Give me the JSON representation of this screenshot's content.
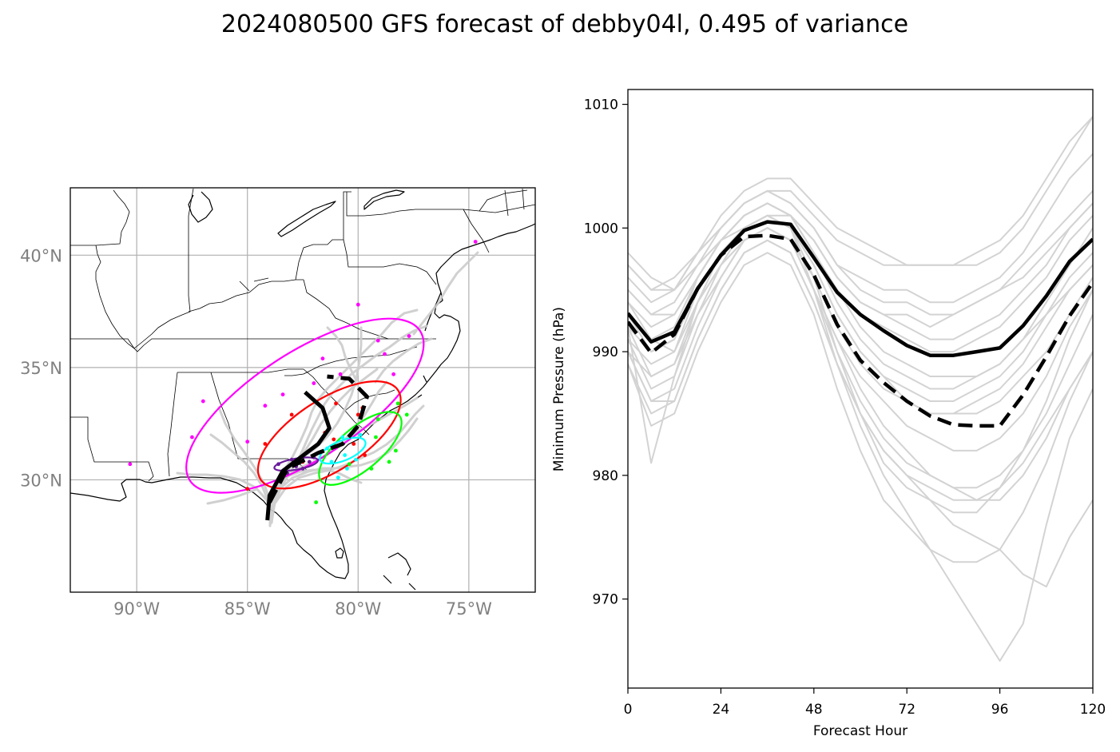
{
  "title": "2024080500 GFS forecast of debby04l, 0.495 of variance",
  "chart_data": [
    {
      "type": "scatter",
      "panel": "track map",
      "lon_range": [
        -93,
        -72
      ],
      "lat_range": [
        25,
        43
      ],
      "lon_ticks": [
        -90,
        -85,
        -80,
        -75
      ],
      "lon_tick_labels": [
        "90°W",
        "85°W",
        "80°W",
        "75°W"
      ],
      "lat_ticks": [
        30,
        35,
        40
      ],
      "lat_tick_labels": [
        "30°N",
        "35°N",
        "40°N"
      ],
      "grid": true,
      "mean_track_solid": [
        [
          -84.1,
          28.2
        ],
        [
          -84.0,
          29.3
        ],
        [
          -83.4,
          30.4
        ],
        [
          -82.6,
          31.0
        ],
        [
          -81.8,
          31.6
        ],
        [
          -81.3,
          32.3
        ],
        [
          -81.6,
          33.2
        ],
        [
          -82.4,
          33.9
        ]
      ],
      "mean_track_dashed": [
        [
          -84.0,
          29.0
        ],
        [
          -83.2,
          30.5
        ],
        [
          -81.8,
          31.2
        ],
        [
          -80.7,
          31.6
        ],
        [
          -80.0,
          32.4
        ],
        [
          -79.6,
          33.7
        ],
        [
          -80.4,
          34.5
        ],
        [
          -81.4,
          34.6
        ]
      ],
      "ellipses": [
        {
          "color": "#ff00ff",
          "center": [
            -82.4,
            33.3
          ],
          "width_deg": 12.4,
          "height_deg": 4.8,
          "angle_deg": 33
        },
        {
          "color": "#ff0000",
          "center": [
            -81.3,
            32.0
          ],
          "width_deg": 7.4,
          "height_deg": 3.2,
          "angle_deg": 33
        },
        {
          "color": "#00ff00",
          "center": [
            -79.9,
            31.4
          ],
          "width_deg": 4.6,
          "height_deg": 1.9,
          "angle_deg": 40
        },
        {
          "color": "#00ffff",
          "center": [
            -80.7,
            31.3
          ],
          "width_deg": 2.2,
          "height_deg": 0.9,
          "angle_deg": 22
        },
        {
          "color": "#6a1b9a",
          "center": [
            -82.8,
            30.7
          ],
          "width_deg": 2.0,
          "height_deg": 0.5,
          "angle_deg": 10
        }
      ],
      "ensemble_points": [
        {
          "color": "#ff00ff",
          "points": [
            [
              -90.3,
              30.7
            ],
            [
              -87.0,
              33.5
            ],
            [
              -87.5,
              31.9
            ],
            [
              -85.0,
              31.7
            ],
            [
              -84.2,
              33.3
            ],
            [
              -83.4,
              33.8
            ],
            [
              -82.0,
              34.3
            ],
            [
              -80.0,
              37.8
            ],
            [
              -74.7,
              40.6
            ],
            [
              -79.1,
              36.2
            ],
            [
              -77.7,
              36.4
            ],
            [
              -78.4,
              34.7
            ],
            [
              -80.8,
              34.7
            ],
            [
              -78.8,
              35.6
            ],
            [
              -81.6,
              35.4
            ]
          ]
        },
        {
          "color": "#ff0000",
          "points": [
            [
              -85.0,
              29.6
            ],
            [
              -84.2,
              31.6
            ],
            [
              -83.0,
              32.9
            ],
            [
              -81.0,
              33.4
            ],
            [
              -80.0,
              32.9
            ],
            [
              -79.8,
              33.2
            ],
            [
              -81.5,
              32.1
            ],
            [
              -81.1,
              31.8
            ],
            [
              -80.2,
              31.6
            ],
            [
              -79.7,
              31.1
            ],
            [
              -82.5,
              30.8
            ]
          ]
        },
        {
          "color": "#00ff00",
          "points": [
            [
              -78.2,
              33.4
            ],
            [
              -77.8,
              32.9
            ],
            [
              -78.3,
              31.3
            ],
            [
              -79.4,
              30.5
            ],
            [
              -80.4,
              30.7
            ],
            [
              -81.9,
              29.0
            ],
            [
              -79.2,
              31.9
            ],
            [
              -78.6,
              30.8
            ],
            [
              -80.9,
              31.5
            ],
            [
              -79.1,
              32.7
            ]
          ]
        },
        {
          "color": "#00ffff",
          "points": [
            [
              -80.9,
              30.1
            ],
            [
              -80.7,
              31.9
            ],
            [
              -81.4,
              31.4
            ],
            [
              -80.5,
              30.5
            ],
            [
              -80.1,
              30.9
            ],
            [
              -79.9,
              32.0
            ],
            [
              -80.6,
              31.1
            ],
            [
              -81.2,
              30.8
            ]
          ]
        },
        {
          "color": "#6a1b9a",
          "points": [
            [
              -83.6,
              30.7
            ],
            [
              -83.0,
              30.9
            ],
            [
              -82.5,
              30.5
            ],
            [
              -82.2,
              30.8
            ],
            [
              -83.2,
              30.3
            ],
            [
              -82.8,
              30.6
            ],
            [
              -82.0,
              31.0
            ]
          ]
        }
      ]
    },
    {
      "type": "line",
      "panel": "minimum pressure",
      "xlabel": "Forecast Hour",
      "ylabel": "Minimum Pressure (hPa)",
      "xlim": [
        0,
        120
      ],
      "ylim": [
        962.8,
        1011.2
      ],
      "xticks": [
        0,
        24,
        48,
        72,
        96,
        120
      ],
      "yticks": [
        970,
        980,
        990,
        1000,
        1010
      ],
      "x": [
        0,
        6,
        12,
        18,
        24,
        30,
        36,
        42,
        48,
        54,
        60,
        66,
        72,
        78,
        84,
        90,
        96,
        102,
        108,
        114,
        120
      ],
      "series": [
        {
          "role": "mean",
          "style": "solid",
          "color": "#000000",
          "values": [
            993.1,
            990.8,
            991.6,
            995.1,
            997.8,
            999.8,
            1000.5,
            1000.3,
            997.6,
            994.8,
            993.0,
            991.7,
            990.5,
            989.7,
            989.7,
            990.0,
            990.3,
            992.1,
            994.5,
            997.3,
            999.1
          ]
        },
        {
          "role": "mean",
          "style": "dashed",
          "color": "#000000",
          "values": [
            992.4,
            989.9,
            991.4,
            995.1,
            997.8,
            999.3,
            999.4,
            999.1,
            996.2,
            992.2,
            989.3,
            987.5,
            986.0,
            984.8,
            984.1,
            984.0,
            984.0,
            986.5,
            989.6,
            992.9,
            995.6
          ]
        },
        {
          "role": "member",
          "values": [
            992,
            990,
            991,
            996,
            999,
            1000,
            1001,
            1000,
            995,
            991,
            988,
            986,
            984,
            983,
            982,
            982,
            983,
            985,
            988,
            992,
            995
          ]
        },
        {
          "role": "member",
          "values": [
            995,
            993,
            994,
            997,
            999,
            1001,
            1002,
            1001,
            999,
            996,
            994,
            993,
            992,
            991,
            991,
            992,
            993,
            995,
            997,
            1000,
            1002
          ]
        },
        {
          "role": "member",
          "values": [
            990,
            988,
            989,
            993,
            997,
            999,
            1000,
            999,
            995,
            990,
            986,
            983,
            981,
            980,
            979,
            978,
            978,
            980,
            983,
            987,
            990
          ]
        },
        {
          "role": "member",
          "values": [
            997,
            995,
            996,
            998,
            1000,
            1002,
            1003,
            1002,
            1000,
            997,
            996,
            995,
            995,
            994,
            994,
            995,
            996,
            998,
            1001,
            1004,
            1006
          ]
        },
        {
          "role": "member",
          "values": [
            989,
            985,
            986,
            991,
            995,
            998,
            999,
            998,
            994,
            989,
            985,
            982,
            980,
            978,
            977,
            977,
            979,
            982,
            986,
            991,
            995
          ]
        },
        {
          "role": "member",
          "values": [
            994,
            992,
            993,
            996,
            999,
            1001,
            1002,
            1001,
            998,
            995,
            993,
            992,
            991,
            990,
            990,
            991,
            992,
            994,
            996,
            999,
            1001
          ]
        },
        {
          "role": "member",
          "values": [
            991,
            989,
            990,
            994,
            997,
            1000,
            1001,
            1000,
            997,
            993,
            990,
            988,
            987,
            986,
            986,
            987,
            988,
            990,
            993,
            996,
            998
          ]
        },
        {
          "role": "member",
          "values": [
            998,
            996,
            995,
            997,
            1000,
            1002,
            1003,
            1003,
            1001,
            999,
            998,
            997,
            997,
            997,
            997,
            997,
            998,
            1000,
            1003,
            1006,
            1009
          ]
        },
        {
          "role": "member",
          "values": [
            992,
            981,
            988,
            994,
            998,
            1000,
            1001,
            1000,
            996,
            990,
            985,
            981,
            979,
            978,
            976,
            975,
            974,
            972,
            971,
            975,
            978
          ]
        },
        {
          "role": "member",
          "values": [
            993,
            991,
            990,
            995,
            998,
            1000,
            1001,
            1001,
            999,
            996,
            994,
            993,
            993,
            992,
            993,
            994,
            995,
            997,
            999,
            1001,
            1003
          ]
        },
        {
          "role": "member",
          "values": [
            990,
            986,
            987,
            992,
            996,
            999,
            1000,
            999,
            995,
            989,
            984,
            980,
            977,
            974,
            971,
            968,
            965,
            968,
            976,
            983,
            987
          ]
        },
        {
          "role": "member",
          "values": [
            996,
            994,
            995,
            998,
            1000,
            1002,
            1003,
            1002,
            1000,
            997,
            995,
            994,
            994,
            993,
            993,
            994,
            995,
            996,
            998,
            1000,
            1002
          ]
        },
        {
          "role": "member",
          "values": [
            991,
            987,
            988,
            993,
            996,
            999,
            1000,
            999,
            996,
            992,
            989,
            987,
            986,
            985,
            985,
            986,
            987,
            989,
            992,
            995,
            997
          ]
        },
        {
          "role": "member",
          "values": [
            994,
            991,
            992,
            996,
            999,
            1001,
            1002,
            1001,
            998,
            994,
            991,
            989,
            988,
            987,
            987,
            988,
            989,
            991,
            994,
            997,
            1000
          ]
        },
        {
          "role": "member",
          "values": [
            989,
            984,
            985,
            990,
            994,
            997,
            998,
            997,
            993,
            987,
            982,
            978,
            976,
            974,
            973,
            973,
            974,
            977,
            981,
            986,
            990
          ]
        },
        {
          "role": "member",
          "values": [
            997,
            995,
            995,
            998,
            1001,
            1003,
            1004,
            1004,
            1002,
            1000,
            999,
            998,
            997,
            997,
            997,
            998,
            999,
            1001,
            1004,
            1007,
            1009
          ]
        },
        {
          "role": "member",
          "values": [
            993,
            990,
            991,
            995,
            998,
            1000,
            1001,
            1000,
            997,
            993,
            990,
            988,
            986,
            985,
            985,
            985,
            986,
            988,
            990,
            993,
            996
          ]
        },
        {
          "role": "member",
          "values": [
            992,
            988,
            989,
            994,
            997,
            999,
            1000,
            999,
            995,
            991,
            987,
            984,
            982,
            980,
            979,
            979,
            980,
            982,
            985,
            989,
            993
          ]
        },
        {
          "role": "member",
          "values": [
            995,
            993,
            993,
            996,
            999,
            1001,
            1002,
            1001,
            998,
            995,
            992,
            990,
            989,
            988,
            988,
            988,
            989,
            991,
            993,
            995,
            997
          ]
        },
        {
          "role": "member",
          "values": [
            990,
            986,
            986,
            991,
            995,
            998,
            999,
            998,
            994,
            989,
            985,
            982,
            980,
            979,
            978,
            978,
            979,
            981,
            984,
            987,
            990
          ]
        }
      ]
    }
  ]
}
